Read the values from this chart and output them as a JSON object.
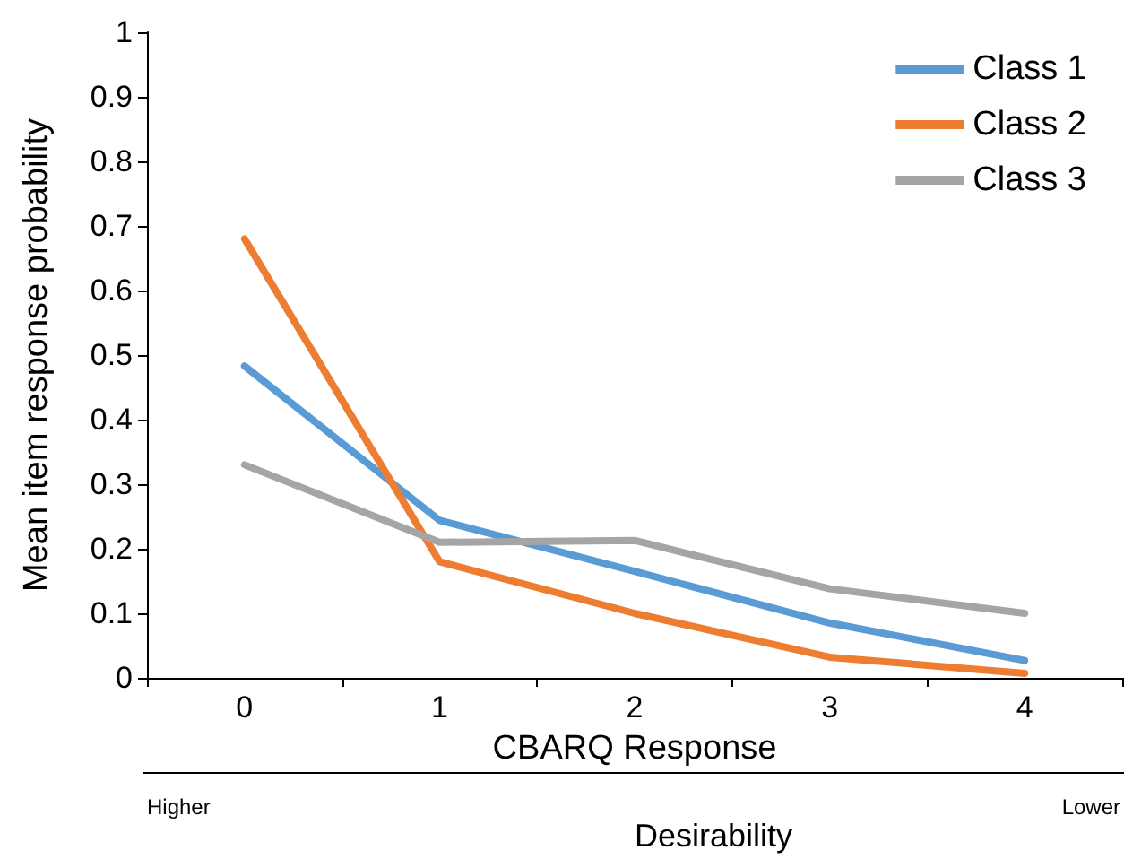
{
  "chart_data": {
    "type": "line",
    "xlabel": "CBARQ Response",
    "ylabel": "Mean item response probability",
    "categories": [
      "0",
      "1",
      "2",
      "3",
      "4"
    ],
    "series": [
      {
        "name": "Class 1",
        "color": "#5b9bd5",
        "values": [
          0.483,
          0.244,
          0.165,
          0.085,
          0.027
        ]
      },
      {
        "name": "Class 2",
        "color": "#ed7d31",
        "values": [
          0.68,
          0.18,
          0.1,
          0.032,
          0.007
        ]
      },
      {
        "name": "Class 3",
        "color": "#a5a5a5",
        "values": [
          0.33,
          0.21,
          0.213,
          0.138,
          0.1
        ]
      }
    ],
    "ylim": [
      0,
      1
    ],
    "yticks": [
      0,
      0.1,
      0.2,
      0.3,
      0.4,
      0.5,
      0.6,
      0.7,
      0.8,
      0.9,
      1
    ],
    "grid": false,
    "legend": "top right",
    "marker": "none",
    "line_style": "solid",
    "annotations": [
      "Higher",
      "Lower",
      "Desirability"
    ]
  }
}
